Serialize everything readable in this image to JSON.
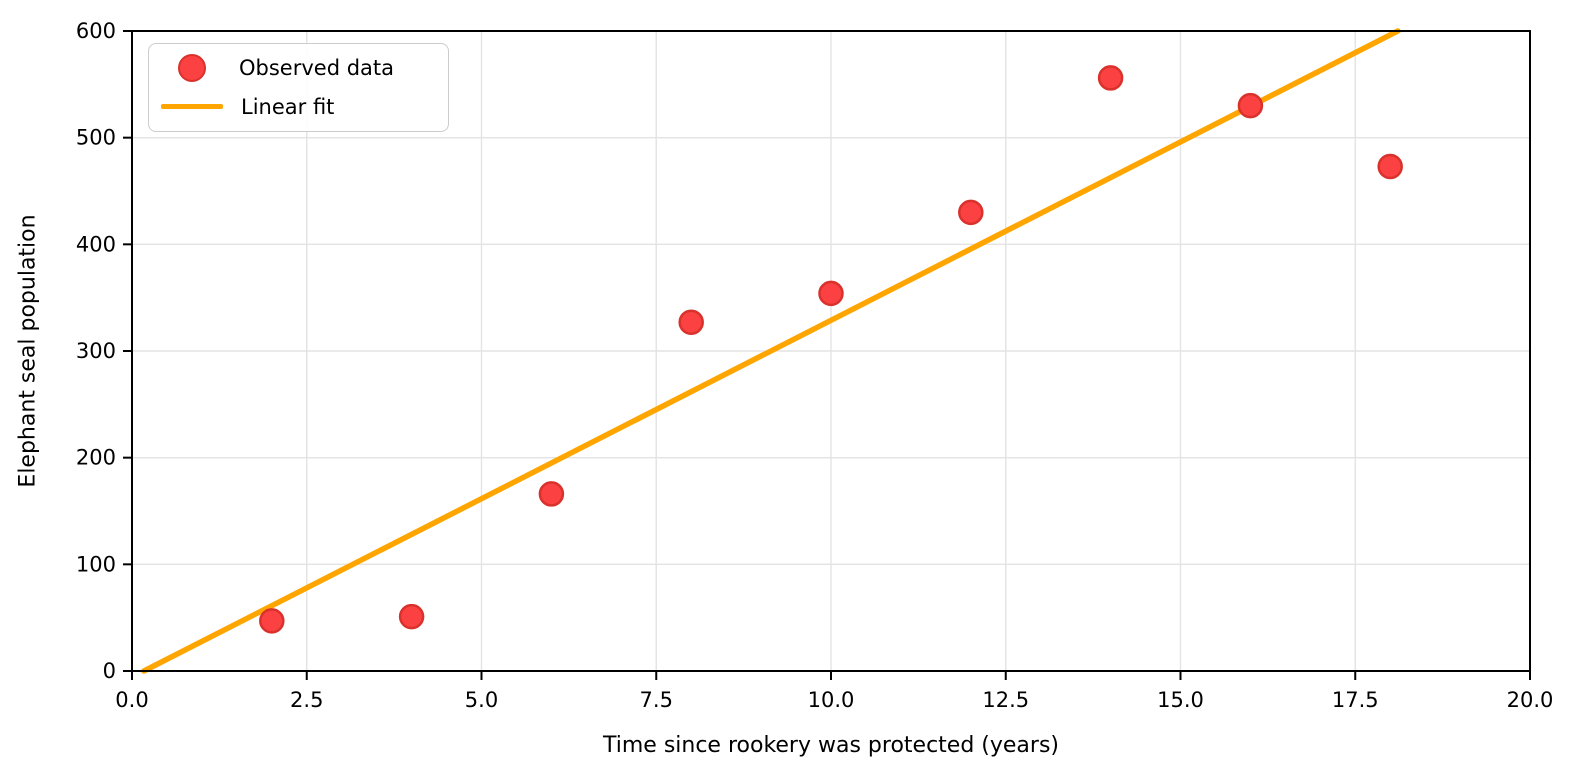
{
  "chart_data": {
    "type": "scatter",
    "title": "",
    "xlabel": "Time since rookery was protected (years)",
    "ylabel": "Elephant seal population",
    "xlim": [
      0,
      20
    ],
    "ylim": [
      0,
      600
    ],
    "grid": true,
    "xticks": [
      0,
      2.5,
      5,
      7.5,
      10,
      12.5,
      15,
      17.5,
      20
    ],
    "xtick_labels": [
      "0.0",
      "2.5",
      "5.0",
      "7.5",
      "10.0",
      "12.5",
      "15.0",
      "17.5",
      "20.0"
    ],
    "yticks": [
      0,
      100,
      200,
      300,
      400,
      500,
      600
    ],
    "ytick_labels": [
      "0",
      "100",
      "200",
      "300",
      "400",
      "500",
      "600"
    ],
    "series": [
      {
        "name": "Observed data",
        "type": "scatter",
        "x": [
          2,
          4,
          6,
          8,
          10,
          12,
          14,
          16,
          18
        ],
        "y": [
          47,
          51,
          166,
          327,
          354,
          430,
          556,
          530,
          473
        ]
      },
      {
        "name": "Linear fit",
        "type": "line",
        "points": [
          [
            0.17,
            0
          ],
          [
            18.11,
            600
          ]
        ]
      }
    ],
    "legend": {
      "position": "upper left",
      "entries": [
        {
          "label": "Observed data",
          "marker": "circle"
        },
        {
          "label": "Linear fit",
          "marker": "line"
        }
      ]
    },
    "colors": {
      "point_fill": "#fb4141",
      "point_edge": "#d9322c",
      "fit_line": "#ffa500",
      "grid": "#e3e3e3",
      "spine": "#000000"
    }
  }
}
